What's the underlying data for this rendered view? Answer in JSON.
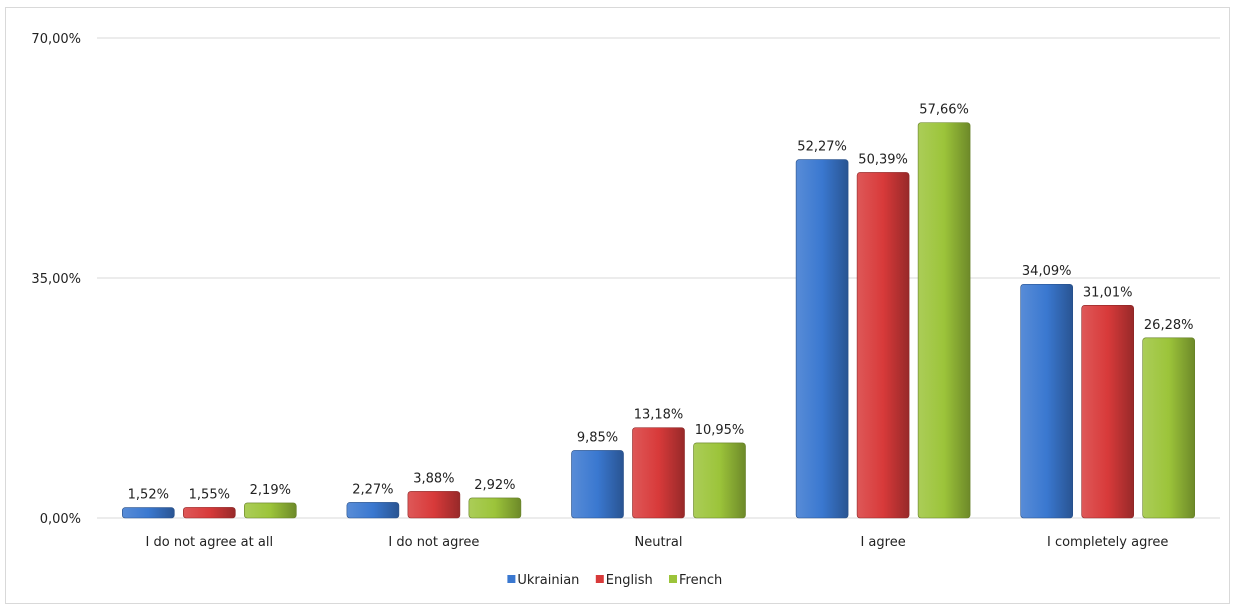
{
  "chart_data": {
    "type": "bar",
    "categories": [
      "I do not agree at all",
      "I do not agree",
      "Neutral",
      "I agree",
      "I completely agree"
    ],
    "series": [
      {
        "name": "Ukrainian",
        "color": "#3a78d0",
        "values": [
          1.52,
          2.27,
          9.85,
          52.27,
          34.09
        ],
        "labels": [
          "1,52%",
          "2,27%",
          "9,85%",
          "52,27%",
          "34,09%"
        ]
      },
      {
        "name": "English",
        "color": "#d83a3a",
        "values": [
          1.55,
          3.88,
          13.18,
          50.39,
          31.01
        ],
        "labels": [
          "1,55%",
          "3,88%",
          "13,18%",
          "50,39%",
          "31,01%"
        ]
      },
      {
        "name": "French",
        "color": "#9cc43a",
        "values": [
          2.19,
          2.92,
          10.95,
          57.66,
          26.28
        ],
        "labels": [
          "2,19%",
          "2,92%",
          "10,95%",
          "57,66%",
          "26,28%"
        ]
      }
    ],
    "ylim": [
      0,
      70
    ],
    "yticks": [
      0,
      35,
      70
    ],
    "ytick_labels": [
      "0,00%",
      "35,00%",
      "70,00%"
    ],
    "grid": true,
    "legend_position": "bottom"
  }
}
